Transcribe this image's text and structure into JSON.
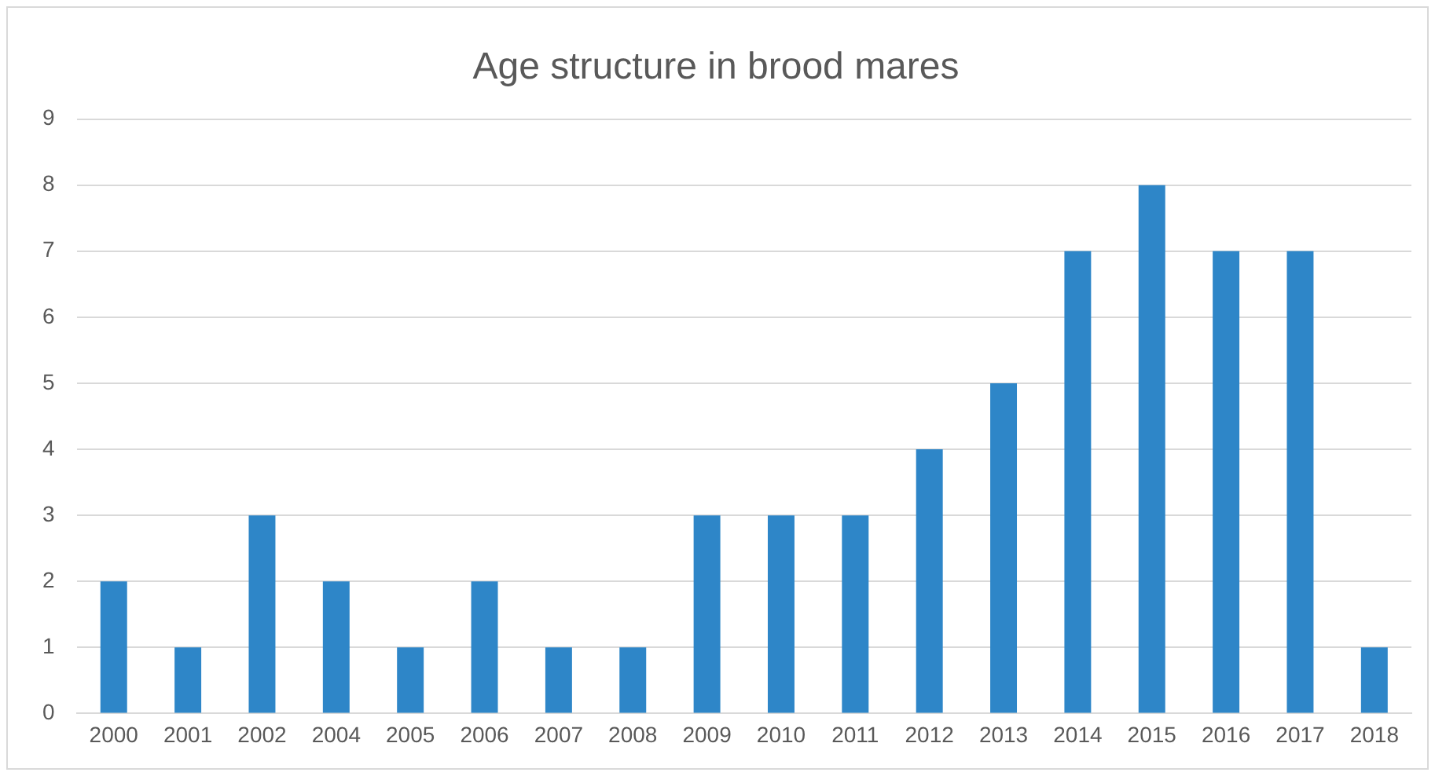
{
  "chart_data": {
    "type": "bar",
    "title": "Age structure in brood mares",
    "categories": [
      "2000",
      "2001",
      "2002",
      "2004",
      "2005",
      "2006",
      "2007",
      "2008",
      "2009",
      "2010",
      "2011",
      "2012",
      "2013",
      "2014",
      "2015",
      "2016",
      "2017",
      "2018"
    ],
    "values": [
      2,
      1,
      3,
      2,
      1,
      2,
      1,
      1,
      3,
      3,
      3,
      4,
      5,
      7,
      8,
      7,
      7,
      1
    ],
    "color": "#2e86c8",
    "ylim": [
      0,
      9
    ],
    "yticks": [
      0,
      1,
      2,
      3,
      4,
      5,
      6,
      7,
      8,
      9
    ],
    "grid": "y",
    "legend": false
  }
}
